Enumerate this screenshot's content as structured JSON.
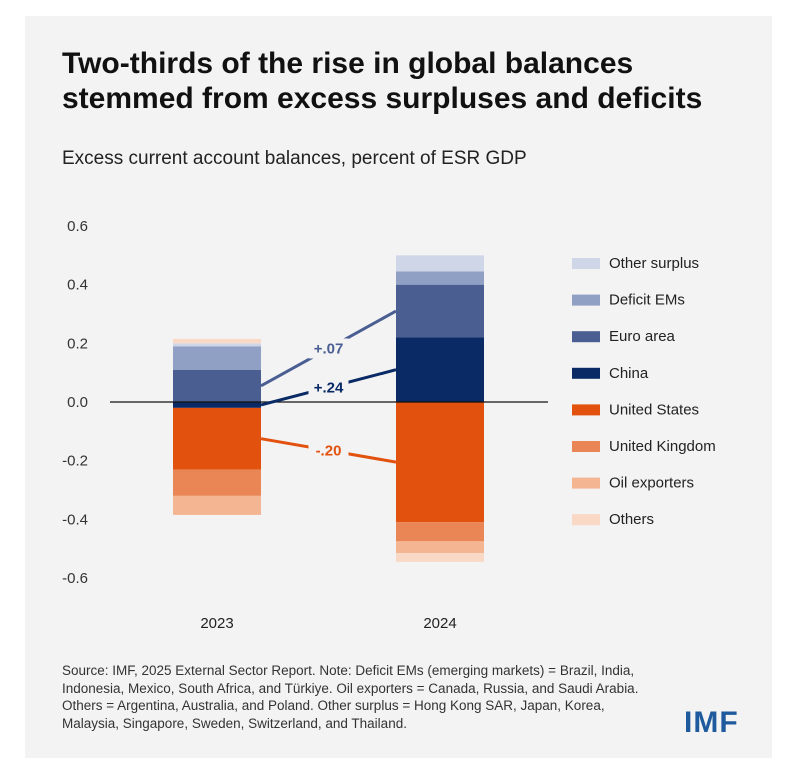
{
  "title": "Two-thirds of the rise in global balances stemmed from excess surpluses and deficits",
  "subtitle": "Excess current account balances, percent of ESR GDP",
  "source": "Source: IMF, 2025 External Sector Report. Note: Deficit EMs (emerging markets) = Brazil, India, Indonesia, Mexico, South Africa, and Türkiye. Oil exporters = Canada, Russia, and Saudi Arabia. Others = Argentina, Australia, and Poland. Other surplus = Hong Kong SAR, Japan, Korea, Malaysia, Singapore, Sweden, Switzerland, and Thailand.",
  "logo_text": "IMF",
  "chart_data": {
    "type": "bar",
    "stacked": true,
    "categories": [
      "2023",
      "2024"
    ],
    "yticks": [
      "0.6",
      "0.4",
      "0.2",
      "0.0",
      "-0.2",
      "-0.4",
      "-0.6"
    ],
    "ylim": [
      -0.6,
      0.6
    ],
    "legend_position": "right",
    "series": [
      {
        "name": "China",
        "color": "#0a2a66",
        "values": [
          -0.02,
          0.22
        ]
      },
      {
        "name": "Euro area",
        "color": "#4a5e92",
        "values": [
          0.11,
          0.18
        ]
      },
      {
        "name": "Deficit EMs",
        "color": "#8fa0c4",
        "values": [
          0.08,
          0.045
        ]
      },
      {
        "name": "Other surplus",
        "color": "#cfd6e8",
        "values": [
          0.01,
          0.055
        ]
      },
      {
        "name": "United States",
        "color": "#e2510d",
        "values": [
          -0.21,
          -0.41
        ]
      },
      {
        "name": "United Kingdom",
        "color": "#ea8656",
        "values": [
          -0.09,
          -0.065
        ]
      },
      {
        "name": "Oil exporters",
        "color": "#f4b593",
        "values": [
          -0.065,
          -0.04
        ]
      },
      {
        "name": "Others",
        "color": "#f9d8c6",
        "values": [
          0.015,
          -0.03
        ]
      }
    ],
    "legend_order": [
      "Other surplus",
      "Deficit EMs",
      "Euro area",
      "China",
      "United States",
      "United Kingdom",
      "Oil exporters",
      "Others"
    ],
    "annotations": [
      {
        "text": "+.07",
        "series": "Euro area",
        "color": "#4a5e92"
      },
      {
        "text": "+.24",
        "series": "China",
        "color": "#0a2a66"
      },
      {
        "text": "-.20",
        "series": "United States",
        "color": "#e2510d"
      }
    ]
  }
}
